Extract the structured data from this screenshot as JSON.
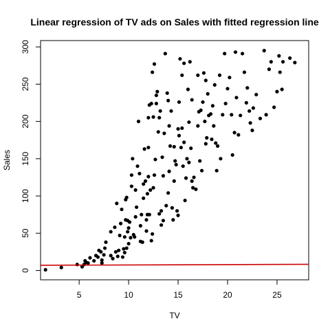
{
  "chart_data": {
    "type": "scatter",
    "title": "Linear regression of TV ads on Sales with fitted regression line",
    "xlabel": "TV",
    "ylabel": "Sales",
    "xlim": [
      1.1,
      28.2
    ],
    "ylim": [
      -12.5,
      308.5
    ],
    "x_ticks": [
      5,
      10,
      15,
      20,
      25
    ],
    "y_ticks": [
      0,
      50,
      100,
      150,
      200,
      250,
      300
    ],
    "x_tick_labels": [
      "5",
      "10",
      "15",
      "20",
      "25"
    ],
    "y_tick_labels": [
      "0",
      "50",
      "100",
      "150",
      "200",
      "250",
      "300"
    ],
    "grid": false,
    "point_color": "#000000",
    "fit_line_color": "#cc0000",
    "fit_line": {
      "x": [
        1.1,
        28.2
      ],
      "y": [
        7.0,
        8.3
      ]
    },
    "series": [
      {
        "points": [
          [
            1.6,
            1
          ],
          [
            3.2,
            4
          ],
          [
            4.8,
            8
          ],
          [
            5.3,
            5
          ],
          [
            5.5,
            8
          ],
          [
            5.7,
            11
          ],
          [
            5.6,
            13
          ],
          [
            5.9,
            10
          ],
          [
            6.1,
            17
          ],
          [
            6.5,
            13
          ],
          [
            6.7,
            20
          ],
          [
            6.9,
            18
          ],
          [
            7.0,
            27
          ],
          [
            7.2,
            25
          ],
          [
            7.3,
            14
          ],
          [
            7.3,
            10
          ],
          [
            7.5,
            21
          ],
          [
            7.6,
            30
          ],
          [
            7.7,
            38
          ],
          [
            8.2,
            20
          ],
          [
            8.4,
            16
          ],
          [
            8.2,
            52
          ],
          [
            8.6,
            58
          ],
          [
            8.7,
            25
          ],
          [
            8.8,
            90
          ],
          [
            8.9,
            19
          ],
          [
            9.0,
            27
          ],
          [
            9.1,
            47
          ],
          [
            9.2,
            63
          ],
          [
            9.3,
            82
          ],
          [
            9.4,
            18
          ],
          [
            9.5,
            29
          ],
          [
            9.6,
            24
          ],
          [
            9.6,
            45
          ],
          [
            9.7,
            68
          ],
          [
            9.7,
            95
          ],
          [
            9.8,
            98
          ],
          [
            9.8,
            30
          ],
          [
            9.9,
            52
          ],
          [
            9.9,
            67
          ],
          [
            10.0,
            36
          ],
          [
            10.0,
            57
          ],
          [
            10.1,
            65
          ],
          [
            10.2,
            44
          ],
          [
            10.3,
            113
          ],
          [
            10.3,
            128
          ],
          [
            10.4,
            150
          ],
          [
            10.5,
            48
          ],
          [
            10.6,
            45
          ],
          [
            10.7,
            72
          ],
          [
            10.7,
            108
          ],
          [
            10.8,
            85
          ],
          [
            10.9,
            140
          ],
          [
            11.0,
            200
          ],
          [
            11.1,
            130
          ],
          [
            11.2,
            39
          ],
          [
            11.2,
            60
          ],
          [
            11.3,
            75
          ],
          [
            11.4,
            38
          ],
          [
            11.5,
            97
          ],
          [
            11.5,
            116
          ],
          [
            11.6,
            163
          ],
          [
            11.7,
            120
          ],
          [
            11.8,
            53
          ],
          [
            11.8,
            68
          ],
          [
            11.9,
            75
          ],
          [
            11.9,
            103
          ],
          [
            12.0,
            126
          ],
          [
            12.0,
            165
          ],
          [
            12.0,
            205
          ],
          [
            12.1,
            222
          ],
          [
            12.1,
            75
          ],
          [
            12.2,
            108
          ],
          [
            12.3,
            224
          ],
          [
            12.3,
            40
          ],
          [
            12.4,
            266
          ],
          [
            12.4,
            49
          ],
          [
            12.5,
            111
          ],
          [
            12.5,
            206
          ],
          [
            12.6,
            128
          ],
          [
            12.6,
            277
          ],
          [
            12.7,
            149
          ],
          [
            12.8,
            224
          ],
          [
            12.8,
            235
          ],
          [
            12.9,
            240
          ],
          [
            13.0,
            186
          ],
          [
            13.1,
            205
          ],
          [
            13.1,
            76
          ],
          [
            13.2,
            214
          ],
          [
            13.3,
            80
          ],
          [
            13.3,
            61
          ],
          [
            13.4,
            152
          ],
          [
            13.5,
            127
          ],
          [
            13.5,
            67
          ],
          [
            13.6,
            184
          ],
          [
            13.7,
            291
          ],
          [
            13.8,
            87
          ],
          [
            13.9,
            238
          ],
          [
            14.0,
            228
          ],
          [
            14.0,
            104
          ],
          [
            14.1,
            194
          ],
          [
            14.1,
            133
          ],
          [
            14.2,
            167
          ],
          [
            14.3,
            214
          ],
          [
            14.4,
            84
          ],
          [
            14.5,
            68
          ],
          [
            14.6,
            166
          ],
          [
            14.6,
            120
          ],
          [
            14.7,
            147
          ],
          [
            14.8,
            142
          ],
          [
            14.9,
            80
          ],
          [
            15.0,
            74
          ],
          [
            15.0,
            190
          ],
          [
            15.1,
            181
          ],
          [
            15.1,
            226
          ],
          [
            15.2,
            284
          ],
          [
            15.3,
            165
          ],
          [
            15.4,
            262
          ],
          [
            15.4,
            191
          ],
          [
            15.5,
            140
          ],
          [
            15.6,
            278
          ],
          [
            15.6,
            172
          ],
          [
            15.7,
            94
          ],
          [
            15.8,
            124
          ],
          [
            15.9,
            150
          ],
          [
            16.0,
            243
          ],
          [
            16.1,
            145
          ],
          [
            16.1,
            199
          ],
          [
            16.2,
            280
          ],
          [
            16.3,
            164
          ],
          [
            16.4,
            120
          ],
          [
            16.4,
            229
          ],
          [
            16.5,
            111
          ],
          [
            16.6,
            125
          ],
          [
            16.8,
            109
          ],
          [
            17.0,
            194
          ],
          [
            17.0,
            262
          ],
          [
            17.1,
            213
          ],
          [
            17.2,
            147
          ],
          [
            17.3,
            215
          ],
          [
            17.4,
            134
          ],
          [
            17.5,
            226
          ],
          [
            17.6,
            265
          ],
          [
            17.7,
            200
          ],
          [
            17.8,
            255
          ],
          [
            17.8,
            170
          ],
          [
            17.9,
            178
          ],
          [
            18.0,
            237
          ],
          [
            18.1,
            208
          ],
          [
            18.3,
            210
          ],
          [
            18.4,
            176
          ],
          [
            18.5,
            221
          ],
          [
            18.6,
            194
          ],
          [
            18.7,
            249
          ],
          [
            18.8,
            171
          ],
          [
            18.9,
            134
          ],
          [
            19.0,
            167
          ],
          [
            19.2,
            262
          ],
          [
            19.3,
            150
          ],
          [
            19.5,
            209
          ],
          [
            19.7,
            291
          ],
          [
            19.8,
            224
          ],
          [
            20.0,
            244
          ],
          [
            20.2,
            259
          ],
          [
            20.4,
            209
          ],
          [
            20.5,
            155
          ],
          [
            20.7,
            185
          ],
          [
            20.8,
            293
          ],
          [
            20.9,
            232
          ],
          [
            21.1,
            182
          ],
          [
            21.3,
            208
          ],
          [
            21.5,
            291
          ],
          [
            21.7,
            266
          ],
          [
            21.9,
            225
          ],
          [
            22.0,
            245
          ],
          [
            22.2,
            214
          ],
          [
            22.3,
            198
          ],
          [
            22.5,
            188
          ],
          [
            22.6,
            218
          ],
          [
            22.9,
            236
          ],
          [
            23.3,
            204
          ],
          [
            23.7,
            295
          ],
          [
            23.9,
            209
          ],
          [
            24.2,
            270
          ],
          [
            24.4,
            280
          ],
          [
            24.7,
            219
          ],
          [
            25.0,
            240
          ],
          [
            25.2,
            288
          ],
          [
            25.3,
            266
          ],
          [
            25.5,
            243
          ],
          [
            25.6,
            280
          ],
          [
            26.3,
            285
          ],
          [
            26.8,
            279
          ]
        ]
      }
    ]
  }
}
